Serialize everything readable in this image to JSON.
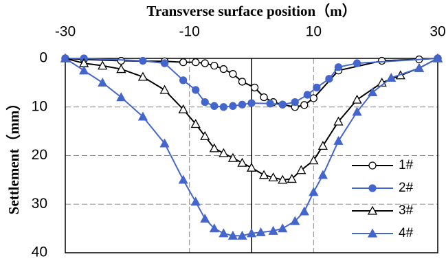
{
  "chart_data": {
    "type": "line",
    "title": "Transverse surface position（m）",
    "y_label": "Settlement（mm）",
    "xlim": [
      -30,
      30
    ],
    "xticks": [
      -30,
      -10,
      10,
      30
    ],
    "ylim": [
      0,
      40
    ],
    "yticks": [
      0,
      10,
      20,
      30,
      40
    ],
    "y_inverted": true,
    "grid": true,
    "legend": "lower right",
    "series": [
      {
        "name": "1#",
        "color": "#000000",
        "marker": "circle",
        "filled": false,
        "x": [
          -30,
          -27,
          -21,
          -14,
          -11,
          -9,
          -7.5,
          -6,
          -4.5,
          -3,
          -1.5,
          0.5,
          2,
          3.5,
          5,
          7,
          8.5,
          10,
          14,
          21,
          27,
          30
        ],
        "values": [
          0,
          0.2,
          0.5,
          0.6,
          0.8,
          0.8,
          1,
          1.5,
          2.2,
          3.2,
          4.8,
          6,
          8,
          9,
          9.5,
          10,
          9.6,
          8.2,
          2.5,
          0.5,
          0.2,
          0
        ]
      },
      {
        "name": "2#",
        "color": "#4466cc",
        "marker": "circle",
        "filled": true,
        "x": [
          -30,
          -27,
          -17.5,
          -14,
          -11,
          -9,
          -7.5,
          -6,
          -4.5,
          -3,
          -1.5,
          0,
          3,
          5,
          7,
          9,
          10.5,
          12.5,
          14,
          17,
          30
        ],
        "values": [
          0,
          0,
          0.5,
          1,
          4.5,
          6.5,
          9,
          9.8,
          10,
          9.8,
          9.5,
          9.2,
          9.3,
          9.5,
          9,
          7.5,
          6,
          4.2,
          1.8,
          1,
          0
        ]
      },
      {
        "name": "3#",
        "color": "#000000",
        "marker": "triangle",
        "filled": false,
        "x": [
          -30,
          -27,
          -24,
          -21,
          -17.5,
          -14,
          -11,
          -9,
          -7.5,
          -6,
          -4.5,
          -3,
          -1.5,
          0,
          2,
          3.5,
          5,
          6.5,
          8,
          10,
          11.5,
          14,
          17,
          21,
          24,
          27,
          30
        ],
        "values": [
          0,
          1,
          1.5,
          2.2,
          3.8,
          6.5,
          10.5,
          13.5,
          16,
          18.5,
          19.5,
          20.5,
          21.5,
          22.5,
          24,
          24.5,
          25,
          24.8,
          23,
          21,
          18,
          13,
          8.5,
          5,
          3.5,
          2,
          0
        ]
      },
      {
        "name": "4#",
        "color": "#4466cc",
        "marker": "triangle",
        "filled": true,
        "x": [
          -30,
          -27,
          -24,
          -21,
          -17.5,
          -14,
          -11,
          -9,
          -7.5,
          -6,
          -4.5,
          -3,
          -1.5,
          0,
          1.5,
          3.5,
          5,
          7,
          8.5,
          10,
          11.5,
          14,
          17,
          19.5,
          22.5,
          27,
          30
        ],
        "values": [
          0,
          2.5,
          5,
          8,
          12,
          17.5,
          25,
          29.5,
          33,
          35,
          36,
          36.5,
          36.5,
          36,
          35.8,
          35.5,
          35,
          33.5,
          31.5,
          27.5,
          24,
          17,
          11,
          7,
          4,
          2,
          0
        ]
      }
    ]
  }
}
